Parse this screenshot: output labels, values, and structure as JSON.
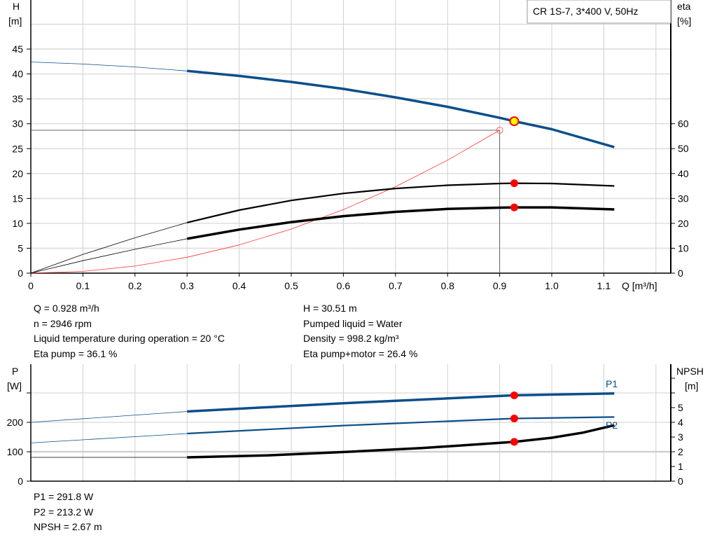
{
  "chart_data": [
    {
      "type": "line",
      "title": "",
      "legend_box": "CR 1S-7, 3*400 V, 50Hz",
      "xlabel": "Q [m³/h]",
      "ylabel_left": [
        "H",
        "[m]"
      ],
      "ylabel_right": [
        "eta",
        "[%]"
      ],
      "xlim": [
        0,
        1.23
      ],
      "ylim_left": [
        0,
        55
      ],
      "ylim_right": [
        0,
        110
      ],
      "x_ticks": [
        "0",
        "0.1",
        "0.2",
        "0.3",
        "0.4",
        "0.5",
        "0.6",
        "0.7",
        "0.8",
        "0.9",
        "1.0",
        "1.1"
      ],
      "y_ticks_left": [
        "0",
        "5",
        "10",
        "15",
        "20",
        "25",
        "30",
        "35",
        "40",
        "45"
      ],
      "y_ticks_right": [
        "0",
        "10",
        "20",
        "30",
        "40",
        "50",
        "60"
      ],
      "grid": true,
      "series": [
        {
          "id": "H",
          "axis": "left",
          "color": "#0b4f8a",
          "x": [
            0,
            0.1,
            0.2,
            0.3,
            0.4,
            0.5,
            0.6,
            0.7,
            0.8,
            0.9,
            0.928,
            1.0,
            1.12
          ],
          "y": [
            42.4,
            42.0,
            41.4,
            40.6,
            39.6,
            38.4,
            37.0,
            35.3,
            33.4,
            31.2,
            30.51,
            28.9,
            25.3
          ]
        },
        {
          "id": "eta_pump",
          "axis": "right",
          "color": "#000000",
          "x": [
            0,
            0.1,
            0.2,
            0.3,
            0.4,
            0.5,
            0.6,
            0.7,
            0.8,
            0.9,
            0.928,
            1.0,
            1.12
          ],
          "y": [
            0,
            7.5,
            14.2,
            20.3,
            25.3,
            29.2,
            32.0,
            34.0,
            35.3,
            36.0,
            36.1,
            36.0,
            35.0
          ]
        },
        {
          "id": "eta_pump_motor",
          "axis": "right",
          "color": "#000000",
          "x": [
            0,
            0.1,
            0.2,
            0.3,
            0.4,
            0.5,
            0.6,
            0.7,
            0.8,
            0.9,
            0.928,
            1.0,
            1.12
          ],
          "y": [
            0,
            5.0,
            9.6,
            13.8,
            17.5,
            20.5,
            22.9,
            24.6,
            25.8,
            26.3,
            26.4,
            26.4,
            25.6
          ]
        },
        {
          "id": "system",
          "axis": "left",
          "color": "#ff3333",
          "x": [
            0,
            0.1,
            0.2,
            0.3,
            0.4,
            0.5,
            0.6,
            0.7,
            0.8,
            0.9
          ],
          "y": [
            0,
            0.35,
            1.42,
            3.19,
            5.67,
            8.86,
            12.76,
            17.36,
            22.68,
            28.7
          ]
        }
      ],
      "duty_point": {
        "q": 0.928,
        "h": 30.51,
        "eta_pump": 36.1,
        "eta_pump_motor": 26.4
      },
      "requested_point": {
        "q": 0.9,
        "h": 28.7
      }
    },
    {
      "type": "line",
      "title": "",
      "ylabel_left": [
        "P",
        "[W]"
      ],
      "ylabel_right": [
        "NPSH",
        "[m]"
      ],
      "xlim": [
        0,
        1.23
      ],
      "ylim_left": [
        0,
        400
      ],
      "ylim_right": [
        0,
        8
      ],
      "y_ticks_left": [
        "0",
        "100",
        "200"
      ],
      "y_ticks_right": [
        "0",
        "1",
        "2",
        "3",
        "4",
        "5"
      ],
      "grid": true,
      "series": [
        {
          "id": "P1",
          "name": "P1",
          "axis": "left",
          "color": "#0b4f8a",
          "x": [
            0,
            0.3,
            0.6,
            0.928,
            1.12
          ],
          "y": [
            200,
            237,
            265,
            291.8,
            298
          ]
        },
        {
          "id": "P2",
          "name": "P2",
          "axis": "left",
          "color": "#0b4f8a",
          "x": [
            0,
            0.3,
            0.6,
            0.928,
            1.12
          ],
          "y": [
            130,
            162,
            189,
            213.2,
            218
          ]
        },
        {
          "id": "NPSH",
          "axis": "right",
          "color": "#000000",
          "x": [
            0,
            0.3,
            0.45,
            0.6,
            0.75,
            0.928,
            1.0,
            1.06,
            1.12
          ],
          "y": [
            1.62,
            1.62,
            1.75,
            1.98,
            2.25,
            2.67,
            2.95,
            3.3,
            3.8
          ]
        }
      ],
      "duty_point": {
        "q": 0.928,
        "P1": 291.8,
        "P2": 213.2,
        "NPSH": 2.67
      }
    }
  ],
  "info": {
    "left": [
      "Q = 0.928 m³/h",
      "n = 2946 rpm",
      "Liquid temperature during operation = 20 °C",
      "Eta pump = 36.1 %"
    ],
    "right": [
      "H = 30.51 m",
      "Pumped liquid = Water",
      "Density = 998.2 kg/m³",
      "Eta pump+motor = 26.4 %"
    ],
    "bottom": [
      "P1 = 291.8 W",
      "P2 = 213.2 W",
      "NPSH = 2.67 m"
    ]
  },
  "colors": {
    "curve_blue": "#0b4f8a",
    "duty_fill": "#ffff00",
    "dot_red": "#ff0000",
    "system_red": "#ff3333",
    "grid": "#d0d0d0"
  }
}
